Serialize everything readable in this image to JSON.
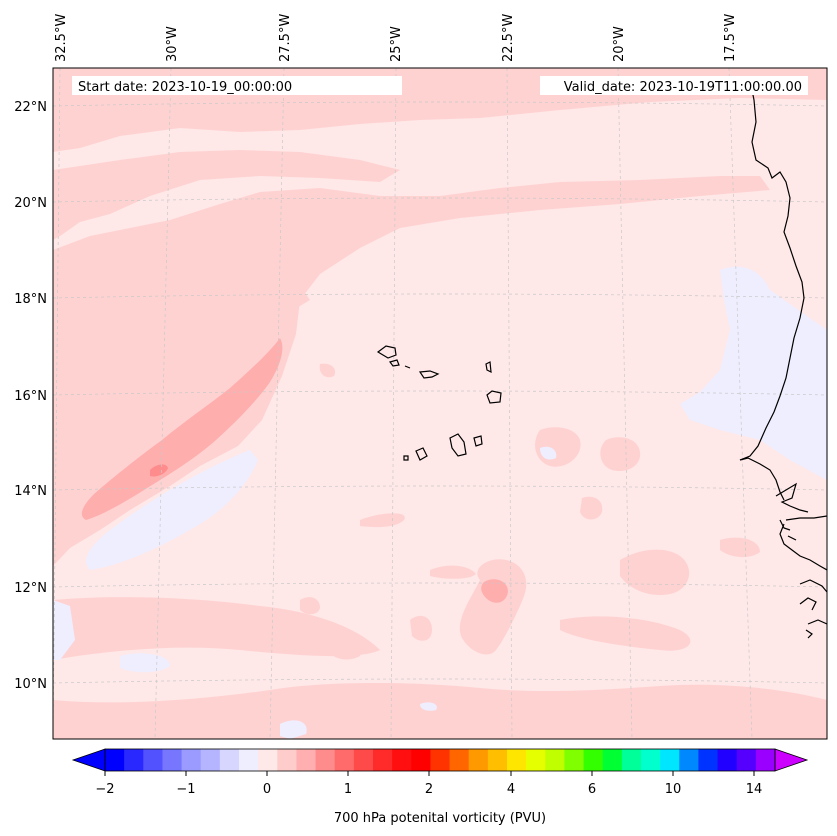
{
  "header": {
    "start_label": "Start date: 2023-10-19_00:00:00",
    "valid_label": "Valid_date: 2023-10-19T11:00:00.00"
  },
  "map": {
    "lon_labels": [
      "32.5°W",
      "30°W",
      "27.5°W",
      "25°W",
      "22.5°W",
      "20°W",
      "17.5°W"
    ],
    "lat_labels": [
      "22°N",
      "20°N",
      "18°N",
      "16°N",
      "14°N",
      "12°N",
      "10°N"
    ],
    "gridlines": true,
    "features": [
      "Cape Verde islands",
      "West African coastline"
    ]
  },
  "colorbar": {
    "label": "700 hPa potenital vorticity (PVU)",
    "tick_labels": [
      "−2",
      "−1",
      "0",
      "1",
      "2",
      "4",
      "6",
      "10",
      "14"
    ],
    "colors": [
      "#0000ff",
      "#2929ff",
      "#5252ff",
      "#7676ff",
      "#9a9aff",
      "#b5b5ff",
      "#d6d6ff",
      "#eeeeff",
      "#ffe8e8",
      "#ffcccc",
      "#ffafaf",
      "#ff8c8c",
      "#ff6a6a",
      "#ff4a4a",
      "#ff2a2a",
      "#ff0f0f",
      "#ff0000",
      "#ff3300",
      "#ff6600",
      "#ff9900",
      "#ffbf00",
      "#ffe600",
      "#e6ff00",
      "#bfff00",
      "#7fff00",
      "#33ff00",
      "#00ff33",
      "#00ff99",
      "#00ffcc",
      "#00e6ff",
      "#0088ff",
      "#0033ff",
      "#2200ff",
      "#5500ff",
      "#9900ff"
    ],
    "extend_low": "#0000ff",
    "extend_high": "#cc00ff"
  },
  "colors": {
    "background_field": "#ffe8e8",
    "field_level_1": "#ffd2d2",
    "field_level_2": "#ffaeae",
    "field_level_3": "#ff8888",
    "negative_field": "#eeeeff",
    "coast": "#000000",
    "grid": "#c8c8c8"
  }
}
